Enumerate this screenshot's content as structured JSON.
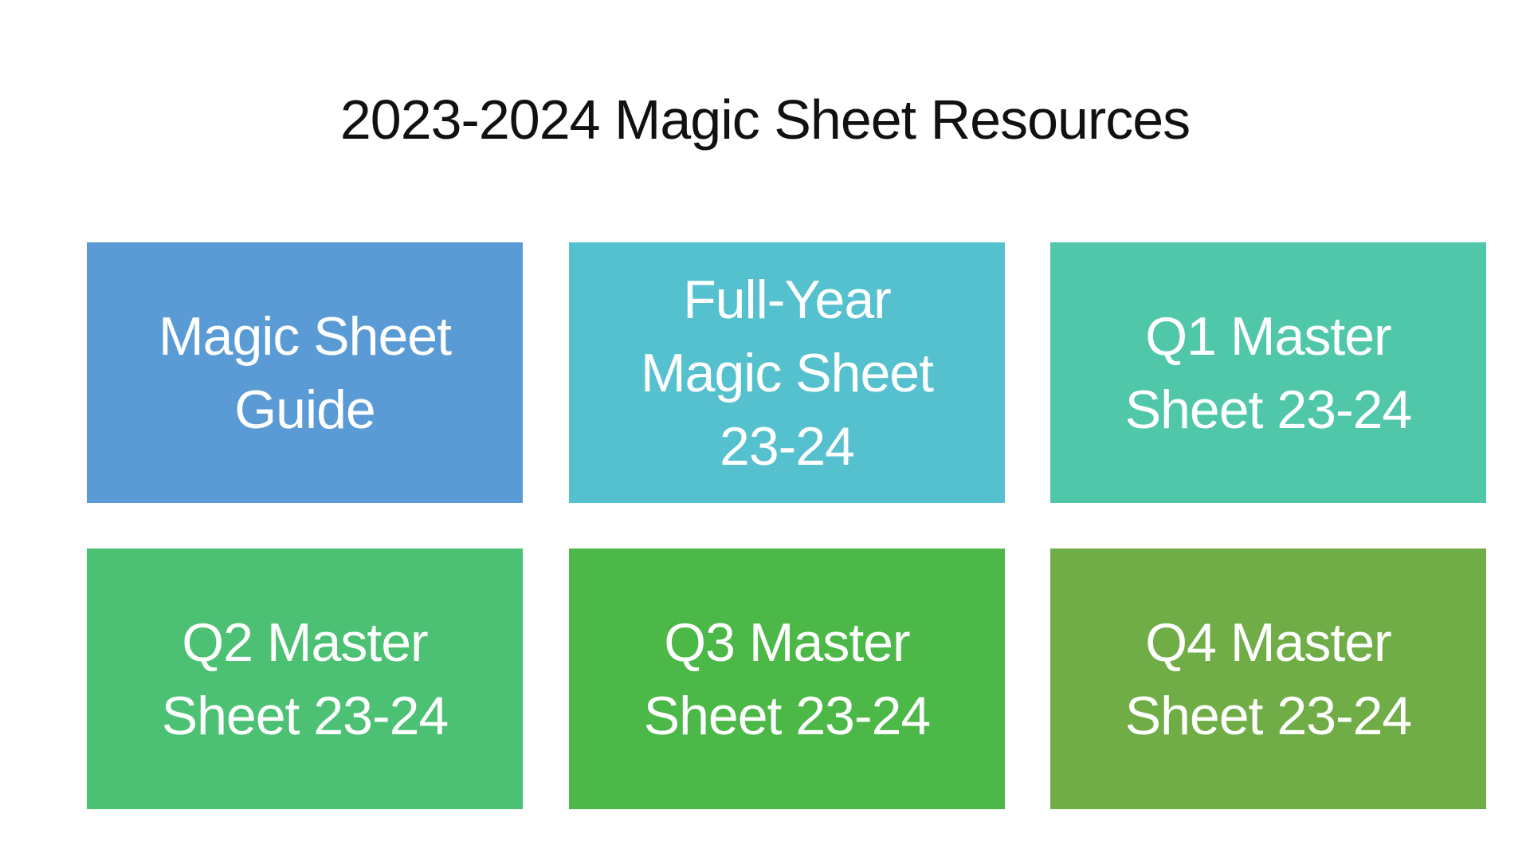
{
  "title": "2023-2024 Magic Sheet Resources",
  "tiles": [
    {
      "label": "Magic Sheet\nGuide",
      "color": "#5B9BD5"
    },
    {
      "label": "Full-Year\nMagic Sheet\n23-24",
      "color": "#56C1CE"
    },
    {
      "label": "Q1 Master\nSheet 23-24",
      "color": "#51C7A9"
    },
    {
      "label": "Q2 Master\nSheet 23-24",
      "color": "#4CC174"
    },
    {
      "label": "Q3 Master\nSheet 23-24",
      "color": "#4CB848"
    },
    {
      "label": "Q4 Master\nSheet 23-24",
      "color": "#70AD47"
    }
  ]
}
